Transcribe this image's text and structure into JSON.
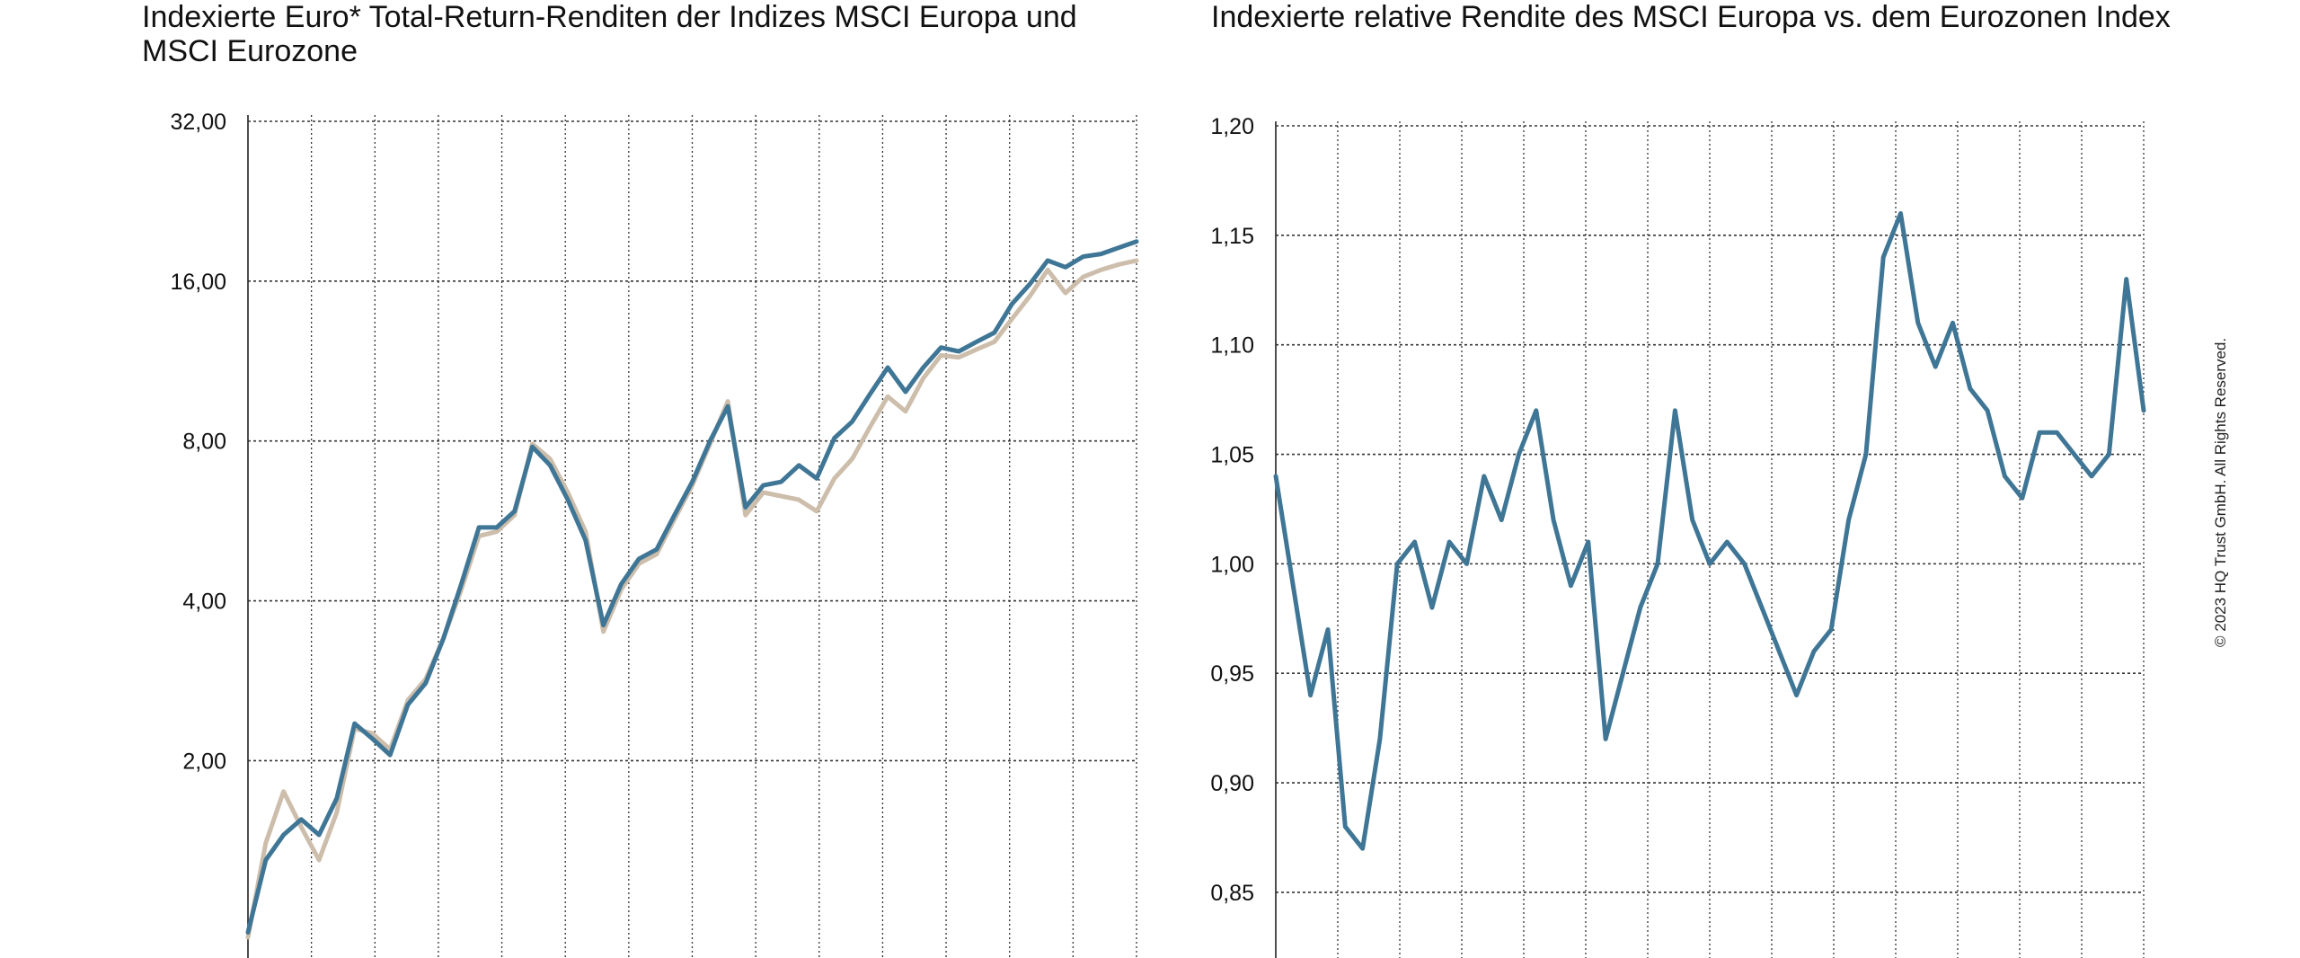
{
  "copyright": "© 2023 HQ Trust GmbH. All Rights Reserved.",
  "colors": {
    "msci_europe": "#3f7696",
    "msci_eurozone": "#cdbdab",
    "grid": "#333333",
    "relative": "#3f7696"
  },
  "chart_data": [
    {
      "type": "line",
      "title": "Indexierte Euro* Total-Return-Renditen der Indizes MSCI Europa und MSCI Eurozone",
      "y_scale": "log2",
      "ylim": [
        0.85,
        32
      ],
      "yticks": [
        2,
        4,
        8,
        16,
        32
      ],
      "ytick_labels": [
        "2,00",
        "4,00",
        "8,00",
        "16,00",
        "32,00"
      ],
      "x": [
        0,
        2,
        4,
        6,
        8,
        10,
        12,
        14,
        16,
        18,
        20,
        22,
        24,
        26,
        28,
        30,
        32,
        34,
        36,
        38,
        40,
        42,
        44,
        46,
        48,
        50,
        52,
        54,
        56,
        58,
        60,
        62,
        64,
        66,
        68,
        70,
        72,
        74,
        76,
        78,
        80,
        82,
        84,
        86,
        88,
        90,
        92,
        94,
        96,
        98,
        100
      ],
      "grid": true,
      "series": [
        {
          "values": [
            0.95,
            1.3,
            1.45,
            1.55,
            1.45,
            1.7,
            2.35,
            2.2,
            2.05,
            2.55,
            2.8,
            3.4,
            4.3,
            5.5,
            5.5,
            5.9,
            7.8,
            7.2,
            6.2,
            5.2,
            3.6,
            4.3,
            4.8,
            5.0,
            5.8,
            6.7,
            8.0,
            9.3,
            6.0,
            6.6,
            6.7,
            7.2,
            6.8,
            8.1,
            8.7,
            9.8,
            11.0,
            9.9,
            11.0,
            12.0,
            11.8,
            12.3,
            12.8,
            14.5,
            15.8,
            17.5,
            17.0,
            17.8,
            18.0,
            18.5,
            19.0
          ]
        },
        {
          "values": [
            0.93,
            1.4,
            1.75,
            1.5,
            1.3,
            1.6,
            2.3,
            2.25,
            2.1,
            2.6,
            2.85,
            3.4,
            4.2,
            5.3,
            5.4,
            5.8,
            7.9,
            7.4,
            6.4,
            5.4,
            3.5,
            4.2,
            4.7,
            4.9,
            5.7,
            6.6,
            7.9,
            9.5,
            5.8,
            6.4,
            6.3,
            6.2,
            5.9,
            6.8,
            7.4,
            8.5,
            9.7,
            9.1,
            10.5,
            11.6,
            11.5,
            11.9,
            12.3,
            13.6,
            15.0,
            16.8,
            15.2,
            16.3,
            16.8,
            17.2,
            17.5
          ]
        }
      ]
    },
    {
      "type": "line",
      "title": "Indexierte relative Rendite des MSCI Europa vs. dem Eurozonen Index",
      "ylim": [
        0.82,
        1.2
      ],
      "yticks": [
        0.85,
        0.9,
        0.95,
        1.0,
        1.05,
        1.1,
        1.15,
        1.2
      ],
      "ytick_labels": [
        "0,85",
        "0,90",
        "0,95",
        "1,00",
        "1,05",
        "1,10",
        "1,15",
        "1,20"
      ],
      "x": [
        0,
        2,
        4,
        6,
        8,
        10,
        12,
        14,
        16,
        18,
        20,
        22,
        24,
        26,
        28,
        30,
        32,
        34,
        36,
        38,
        40,
        42,
        44,
        46,
        48,
        50,
        52,
        54,
        56,
        58,
        60,
        62,
        64,
        66,
        68,
        70,
        72,
        74,
        76,
        78,
        80,
        82,
        84,
        86,
        88,
        90,
        92,
        94,
        96,
        98,
        100
      ],
      "grid": true,
      "series": [
        {
          "values": [
            1.04,
            0.99,
            0.94,
            0.97,
            0.88,
            0.87,
            0.92,
            1.0,
            1.01,
            0.98,
            1.01,
            1.0,
            1.04,
            1.02,
            1.05,
            1.07,
            1.02,
            0.99,
            1.01,
            0.92,
            0.95,
            0.98,
            1.0,
            1.07,
            1.02,
            1.0,
            1.01,
            1.0,
            0.98,
            0.96,
            0.94,
            0.96,
            0.97,
            1.02,
            1.05,
            1.14,
            1.16,
            1.11,
            1.09,
            1.11,
            1.08,
            1.07,
            1.04,
            1.03,
            1.06,
            1.06,
            1.05,
            1.04,
            1.05,
            1.13,
            1.07
          ]
        }
      ]
    }
  ]
}
